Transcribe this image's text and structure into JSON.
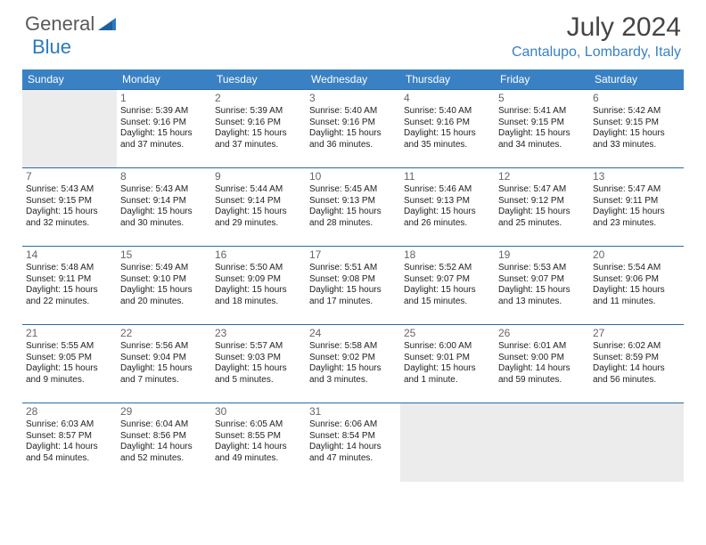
{
  "brand": {
    "part1": "General",
    "part2": "Blue"
  },
  "title": "July 2024",
  "location": "Cantalupo, Lombardy, Italy",
  "colors": {
    "header_bg": "#3a81c4",
    "header_text": "#ffffff",
    "border": "#2a6aa8",
    "empty_bg": "#ececec",
    "daynum": "#666666",
    "body_text": "#222222",
    "brand_gray": "#5a5a5a",
    "brand_blue": "#2a7ac0"
  },
  "day_headers": [
    "Sunday",
    "Monday",
    "Tuesday",
    "Wednesday",
    "Thursday",
    "Friday",
    "Saturday"
  ],
  "weeks": [
    [
      {
        "n": "",
        "sr": "",
        "ss": "",
        "dl": ""
      },
      {
        "n": "1",
        "sr": "Sunrise: 5:39 AM",
        "ss": "Sunset: 9:16 PM",
        "dl": "Daylight: 15 hours and 37 minutes."
      },
      {
        "n": "2",
        "sr": "Sunrise: 5:39 AM",
        "ss": "Sunset: 9:16 PM",
        "dl": "Daylight: 15 hours and 37 minutes."
      },
      {
        "n": "3",
        "sr": "Sunrise: 5:40 AM",
        "ss": "Sunset: 9:16 PM",
        "dl": "Daylight: 15 hours and 36 minutes."
      },
      {
        "n": "4",
        "sr": "Sunrise: 5:40 AM",
        "ss": "Sunset: 9:16 PM",
        "dl": "Daylight: 15 hours and 35 minutes."
      },
      {
        "n": "5",
        "sr": "Sunrise: 5:41 AM",
        "ss": "Sunset: 9:15 PM",
        "dl": "Daylight: 15 hours and 34 minutes."
      },
      {
        "n": "6",
        "sr": "Sunrise: 5:42 AM",
        "ss": "Sunset: 9:15 PM",
        "dl": "Daylight: 15 hours and 33 minutes."
      }
    ],
    [
      {
        "n": "7",
        "sr": "Sunrise: 5:43 AM",
        "ss": "Sunset: 9:15 PM",
        "dl": "Daylight: 15 hours and 32 minutes."
      },
      {
        "n": "8",
        "sr": "Sunrise: 5:43 AM",
        "ss": "Sunset: 9:14 PM",
        "dl": "Daylight: 15 hours and 30 minutes."
      },
      {
        "n": "9",
        "sr": "Sunrise: 5:44 AM",
        "ss": "Sunset: 9:14 PM",
        "dl": "Daylight: 15 hours and 29 minutes."
      },
      {
        "n": "10",
        "sr": "Sunrise: 5:45 AM",
        "ss": "Sunset: 9:13 PM",
        "dl": "Daylight: 15 hours and 28 minutes."
      },
      {
        "n": "11",
        "sr": "Sunrise: 5:46 AM",
        "ss": "Sunset: 9:13 PM",
        "dl": "Daylight: 15 hours and 26 minutes."
      },
      {
        "n": "12",
        "sr": "Sunrise: 5:47 AM",
        "ss": "Sunset: 9:12 PM",
        "dl": "Daylight: 15 hours and 25 minutes."
      },
      {
        "n": "13",
        "sr": "Sunrise: 5:47 AM",
        "ss": "Sunset: 9:11 PM",
        "dl": "Daylight: 15 hours and 23 minutes."
      }
    ],
    [
      {
        "n": "14",
        "sr": "Sunrise: 5:48 AM",
        "ss": "Sunset: 9:11 PM",
        "dl": "Daylight: 15 hours and 22 minutes."
      },
      {
        "n": "15",
        "sr": "Sunrise: 5:49 AM",
        "ss": "Sunset: 9:10 PM",
        "dl": "Daylight: 15 hours and 20 minutes."
      },
      {
        "n": "16",
        "sr": "Sunrise: 5:50 AM",
        "ss": "Sunset: 9:09 PM",
        "dl": "Daylight: 15 hours and 18 minutes."
      },
      {
        "n": "17",
        "sr": "Sunrise: 5:51 AM",
        "ss": "Sunset: 9:08 PM",
        "dl": "Daylight: 15 hours and 17 minutes."
      },
      {
        "n": "18",
        "sr": "Sunrise: 5:52 AM",
        "ss": "Sunset: 9:07 PM",
        "dl": "Daylight: 15 hours and 15 minutes."
      },
      {
        "n": "19",
        "sr": "Sunrise: 5:53 AM",
        "ss": "Sunset: 9:07 PM",
        "dl": "Daylight: 15 hours and 13 minutes."
      },
      {
        "n": "20",
        "sr": "Sunrise: 5:54 AM",
        "ss": "Sunset: 9:06 PM",
        "dl": "Daylight: 15 hours and 11 minutes."
      }
    ],
    [
      {
        "n": "21",
        "sr": "Sunrise: 5:55 AM",
        "ss": "Sunset: 9:05 PM",
        "dl": "Daylight: 15 hours and 9 minutes."
      },
      {
        "n": "22",
        "sr": "Sunrise: 5:56 AM",
        "ss": "Sunset: 9:04 PM",
        "dl": "Daylight: 15 hours and 7 minutes."
      },
      {
        "n": "23",
        "sr": "Sunrise: 5:57 AM",
        "ss": "Sunset: 9:03 PM",
        "dl": "Daylight: 15 hours and 5 minutes."
      },
      {
        "n": "24",
        "sr": "Sunrise: 5:58 AM",
        "ss": "Sunset: 9:02 PM",
        "dl": "Daylight: 15 hours and 3 minutes."
      },
      {
        "n": "25",
        "sr": "Sunrise: 6:00 AM",
        "ss": "Sunset: 9:01 PM",
        "dl": "Daylight: 15 hours and 1 minute."
      },
      {
        "n": "26",
        "sr": "Sunrise: 6:01 AM",
        "ss": "Sunset: 9:00 PM",
        "dl": "Daylight: 14 hours and 59 minutes."
      },
      {
        "n": "27",
        "sr": "Sunrise: 6:02 AM",
        "ss": "Sunset: 8:59 PM",
        "dl": "Daylight: 14 hours and 56 minutes."
      }
    ],
    [
      {
        "n": "28",
        "sr": "Sunrise: 6:03 AM",
        "ss": "Sunset: 8:57 PM",
        "dl": "Daylight: 14 hours and 54 minutes."
      },
      {
        "n": "29",
        "sr": "Sunrise: 6:04 AM",
        "ss": "Sunset: 8:56 PM",
        "dl": "Daylight: 14 hours and 52 minutes."
      },
      {
        "n": "30",
        "sr": "Sunrise: 6:05 AM",
        "ss": "Sunset: 8:55 PM",
        "dl": "Daylight: 14 hours and 49 minutes."
      },
      {
        "n": "31",
        "sr": "Sunrise: 6:06 AM",
        "ss": "Sunset: 8:54 PM",
        "dl": "Daylight: 14 hours and 47 minutes."
      },
      {
        "n": "",
        "sr": "",
        "ss": "",
        "dl": ""
      },
      {
        "n": "",
        "sr": "",
        "ss": "",
        "dl": ""
      },
      {
        "n": "",
        "sr": "",
        "ss": "",
        "dl": ""
      }
    ]
  ]
}
